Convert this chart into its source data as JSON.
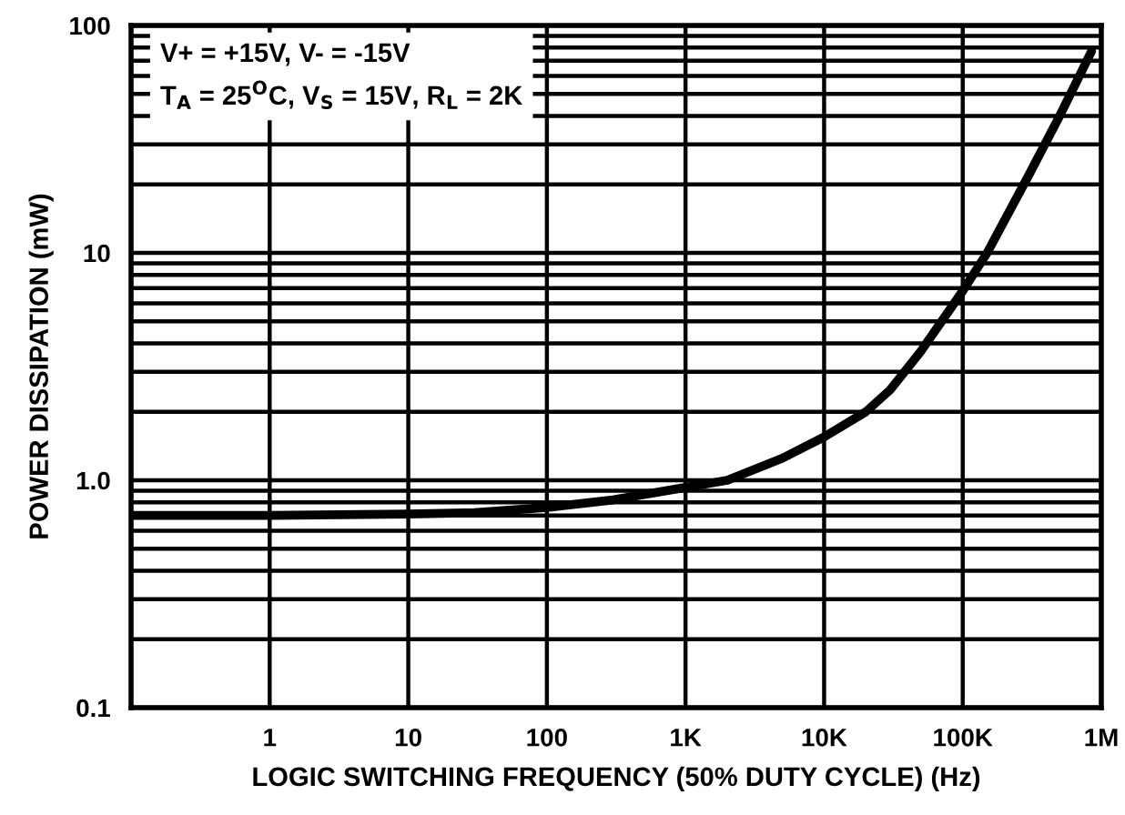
{
  "chart_data": {
    "type": "line",
    "xlabel": "LOGIC SWITCHING FREQUENCY (50% DUTY CYCLE) (Hz)",
    "ylabel": "POWER DISSIPATION (mW)",
    "annotations": [
      "V+ = +15V, V- = -15V",
      "T$_{A}$ = 25$^{O}$C, V$_{S}$ = 15V, R$_{L}$ = 2K"
    ],
    "log": "xy",
    "grid": true,
    "marker": "none",
    "line_style": "solid",
    "xlim": [
      0.1,
      1000000
    ],
    "ylim": [
      0.1,
      100
    ],
    "xticks": [
      {
        "value": 1,
        "label": "1"
      },
      {
        "value": 10,
        "label": "10"
      },
      {
        "value": 100,
        "label": "100"
      },
      {
        "value": 1000,
        "label": "1K"
      },
      {
        "value": 10000,
        "label": "10K"
      },
      {
        "value": 100000,
        "label": "100K"
      },
      {
        "value": 1000000,
        "label": "1M"
      }
    ],
    "yticks": [
      {
        "value": 0.1,
        "label": "0.1"
      },
      {
        "value": 0.2,
        "label": null
      },
      {
        "value": 0.3,
        "label": null
      },
      {
        "value": 0.4,
        "label": null
      },
      {
        "value": 0.5,
        "label": null
      },
      {
        "value": 0.6,
        "label": null
      },
      {
        "value": 0.7,
        "label": null
      },
      {
        "value": 0.8,
        "label": null
      },
      {
        "value": 0.9,
        "label": null
      },
      {
        "value": 1,
        "label": "1.0"
      },
      {
        "value": 2,
        "label": null
      },
      {
        "value": 3,
        "label": null
      },
      {
        "value": 4,
        "label": null
      },
      {
        "value": 5,
        "label": null
      },
      {
        "value": 6,
        "label": null
      },
      {
        "value": 7,
        "label": null
      },
      {
        "value": 8,
        "label": null
      },
      {
        "value": 9,
        "label": null
      },
      {
        "value": 10,
        "label": "10"
      },
      {
        "value": 20,
        "label": null
      },
      {
        "value": 30,
        "label": null
      },
      {
        "value": 40,
        "label": null
      },
      {
        "value": 50,
        "label": null
      },
      {
        "value": 60,
        "label": null
      },
      {
        "value": 70,
        "label": null
      },
      {
        "value": 80,
        "label": null
      },
      {
        "value": 90,
        "label": null
      },
      {
        "value": 100,
        "label": "100"
      }
    ],
    "series": [
      {
        "color": "#000000",
        "x": [
          0.1,
          1,
          10,
          30,
          100,
          300,
          1000,
          2000,
          5000,
          10000,
          20000,
          30000,
          50000,
          100000,
          150000,
          300000,
          500000,
          850000
        ],
        "values": [
          0.7,
          0.7,
          0.71,
          0.72,
          0.76,
          0.82,
          0.93,
          1.0,
          1.25,
          1.55,
          2.0,
          2.5,
          3.7,
          6.8,
          10,
          22,
          40,
          77
        ]
      }
    ]
  }
}
